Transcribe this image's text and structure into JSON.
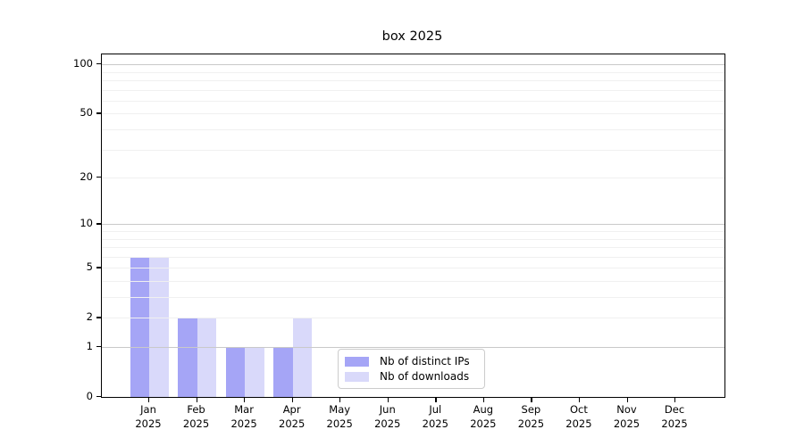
{
  "chart_data": {
    "type": "bar",
    "title": "box 2025",
    "categories": [
      "Jan",
      "Feb",
      "Mar",
      "Apr",
      "May",
      "Jun",
      "Jul",
      "Aug",
      "Sep",
      "Oct",
      "Nov",
      "Dec"
    ],
    "x_year": "2025",
    "series": [
      {
        "name": "Nb of distinct IPs",
        "color": "#a5a5f6",
        "values": [
          6,
          2,
          1,
          1,
          0,
          0,
          0,
          0,
          0,
          0,
          0,
          0
        ]
      },
      {
        "name": "Nb of downloads",
        "color": "#d9d9fa",
        "values": [
          6,
          2,
          1,
          2,
          0,
          0,
          0,
          0,
          0,
          0,
          0,
          0
        ]
      }
    ],
    "y_axis": {
      "scale": "log1p",
      "ylim": [
        0,
        114
      ],
      "ticks": [
        100,
        50,
        20,
        10,
        5,
        2,
        1,
        0
      ],
      "tick_labels": [
        "100",
        "50",
        "20",
        "10",
        "5",
        "2",
        "1",
        "0"
      ],
      "major_gridlines": [
        1,
        10,
        100
      ],
      "minor_gridlines": [
        2,
        3,
        4,
        5,
        6,
        7,
        8,
        9,
        20,
        30,
        40,
        50,
        60,
        70,
        80,
        90
      ]
    },
    "legend": {
      "position": "lower-center-inside",
      "entries": [
        "Nb of distinct IPs",
        "Nb of downloads"
      ]
    },
    "grid": true
  },
  "colors": {
    "background": "#ffffff",
    "spine": "#000000",
    "text": "#000000",
    "major_grid": "#c9c9c9",
    "minor_grid": "#f0f0f0"
  }
}
